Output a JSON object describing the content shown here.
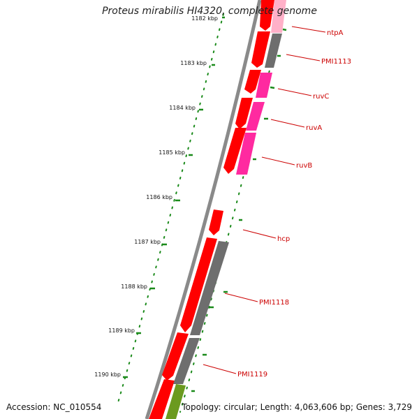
{
  "title": "Proteus mirabilis HI4320, complete genome",
  "footer": {
    "accession": "Accession: NC_010554",
    "topology": "Topology: circular; Length: 4,063,606 bp; Genes: 3,729"
  },
  "colors": {
    "forward_cds": "#ff0000",
    "reverse_other": "#6e6e6e",
    "reverse_ruv": "#ff2aa0",
    "green_feature": "#6b9a1f",
    "backbone": "#8a8a8a",
    "tick": "#1a8a1a",
    "label": "#cc0000",
    "scale_label": "#111111"
  },
  "scale_labels": [
    "1182 kbp",
    "1183 kbp",
    "1184 kbp",
    "1185 kbp",
    "1186 kbp",
    "1187 kbp",
    "1188 kbp",
    "1189 kbp",
    "1190 kbp"
  ],
  "gene_labels": [
    "ntpA",
    "PMI1113",
    "ruvC",
    "ruvA",
    "ruvB",
    "hcp",
    "PMI1118",
    "PMI1119"
  ]
}
